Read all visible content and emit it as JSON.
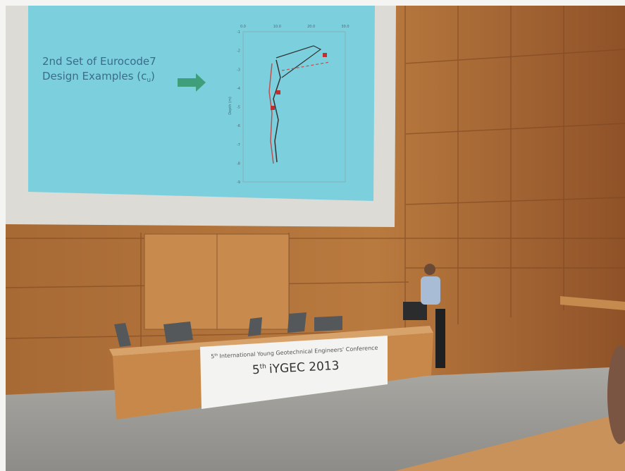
{
  "slide": {
    "heading_line1": "2nd Set of Eurocode7",
    "heading_line2": "Design Examples (c",
    "heading_sub": "u",
    "heading_close": ")",
    "plot": {
      "x_tick_labels": [
        "0.0",
        "10.0",
        "20.0",
        "30.0"
      ],
      "y_tick_labels": [
        "-1",
        "-2",
        "-3",
        "-4",
        "-5",
        "-6",
        "-7",
        "-8",
        "-9"
      ],
      "y_label": "Depth (m)"
    }
  },
  "banner": {
    "conference_ordinal": "5",
    "conference_suffix": "th",
    "conference_name": "International Young Geotechnical Engineers' Conference",
    "headline_ordinal": "5",
    "headline_suffix": "th",
    "headline_name": "iYGEC 2013"
  }
}
